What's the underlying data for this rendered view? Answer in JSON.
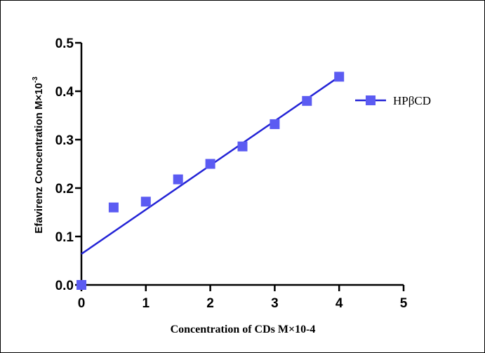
{
  "chart_data": {
    "type": "scatter",
    "xlabel": "Concentration of CDs M×10-4",
    "ylabel": "Efavirenz Concentration  M×10",
    "ylabel_exponent": "-3",
    "xlim": [
      0,
      5
    ],
    "ylim": [
      0,
      0.5
    ],
    "x_ticks": [
      "0",
      "1",
      "2",
      "3",
      "4",
      "5"
    ],
    "y_ticks": [
      "0.0",
      "0.1",
      "0.2",
      "0.3",
      "0.4",
      "0.5"
    ],
    "grid": false,
    "legend_position": "right",
    "series": [
      {
        "name": "HPβCD",
        "color": "#5b5bf2",
        "marker": "square",
        "x": [
          0,
          0.5,
          1,
          1.5,
          2,
          2.5,
          3,
          3.5,
          4
        ],
        "y": [
          0.0,
          0.16,
          0.172,
          0.218,
          0.25,
          0.286,
          0.332,
          0.38,
          0.43
        ],
        "fit_line": {
          "color": "#2323d6",
          "x": [
            0,
            4
          ],
          "y": [
            0.064,
            0.43
          ]
        }
      }
    ]
  }
}
